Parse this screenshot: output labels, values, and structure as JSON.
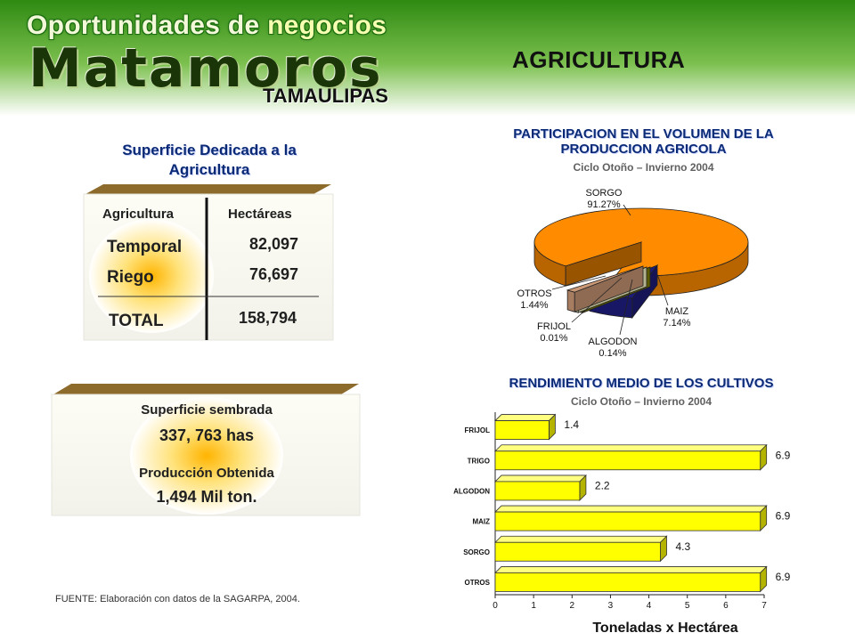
{
  "brand": {
    "line1_a": "Oportunidades de ",
    "line1_b": "negocios",
    "city": "Matamoros",
    "state": "TAMAULIPAS"
  },
  "section_title": "AGRICULTURA",
  "superficie": {
    "title": "Superficie Dedicada a la Agricultura",
    "header_agricultura": "Agricultura",
    "header_hectareas": "Hectáreas",
    "rows": [
      {
        "label": "Temporal",
        "value": "82,097"
      },
      {
        "label": "Riego",
        "value": "76,697"
      }
    ],
    "total_label": "TOTAL",
    "total_value": "158,794"
  },
  "summary": {
    "sembrada_label": "Superficie sembrada",
    "sembrada_value": "337, 763 has",
    "produccion_label": "Producción Obtenida",
    "produccion_value": "1,494 Mil ton."
  },
  "source": "FUENTE: Elaboración con datos de la SAGARPA, 2004.",
  "chart_data": [
    {
      "type": "pie",
      "title": "PARTICIPACION EN EL VOLUMEN DE LA PRODUCCION AGRICOLA",
      "subtitle": "Ciclo Otoño – Invierno 2004",
      "labels": [
        "SORGO",
        "MAIZ",
        "ALGODON",
        "FRIJOL",
        "OTROS"
      ],
      "value_labels": [
        "91.27%",
        "7.14%",
        "0.14%",
        "0.01%",
        "1.44%"
      ],
      "values": [
        91.27,
        7.14,
        0.14,
        0.01,
        1.44
      ],
      "colors": [
        "#ff8c00",
        "#1c1c7c",
        "#808000",
        "#ffffcc",
        "#cc9977"
      ]
    },
    {
      "type": "bar",
      "orientation": "horizontal",
      "title": "RENDIMIENTO MEDIO DE LOS CULTIVOS",
      "subtitle": "Ciclo Otoño – Invierno 2004",
      "categories": [
        "FRIJOL",
        "TRIGO",
        "ALGODON",
        "MAIZ",
        "SORGO",
        "OTROS"
      ],
      "values": [
        1.4,
        6.9,
        2.2,
        6.9,
        4.3,
        6.9
      ],
      "value_labels": [
        "1.4",
        "6.9",
        "2.2",
        "6.9",
        "4.3",
        "6.9"
      ],
      "xlabel": "Toneladas x Hectárea",
      "xlim": [
        0,
        7
      ],
      "xticks": [
        "0",
        "1",
        "2",
        "3",
        "4",
        "5",
        "6",
        "7"
      ],
      "bar_color": "#ffff00"
    }
  ]
}
